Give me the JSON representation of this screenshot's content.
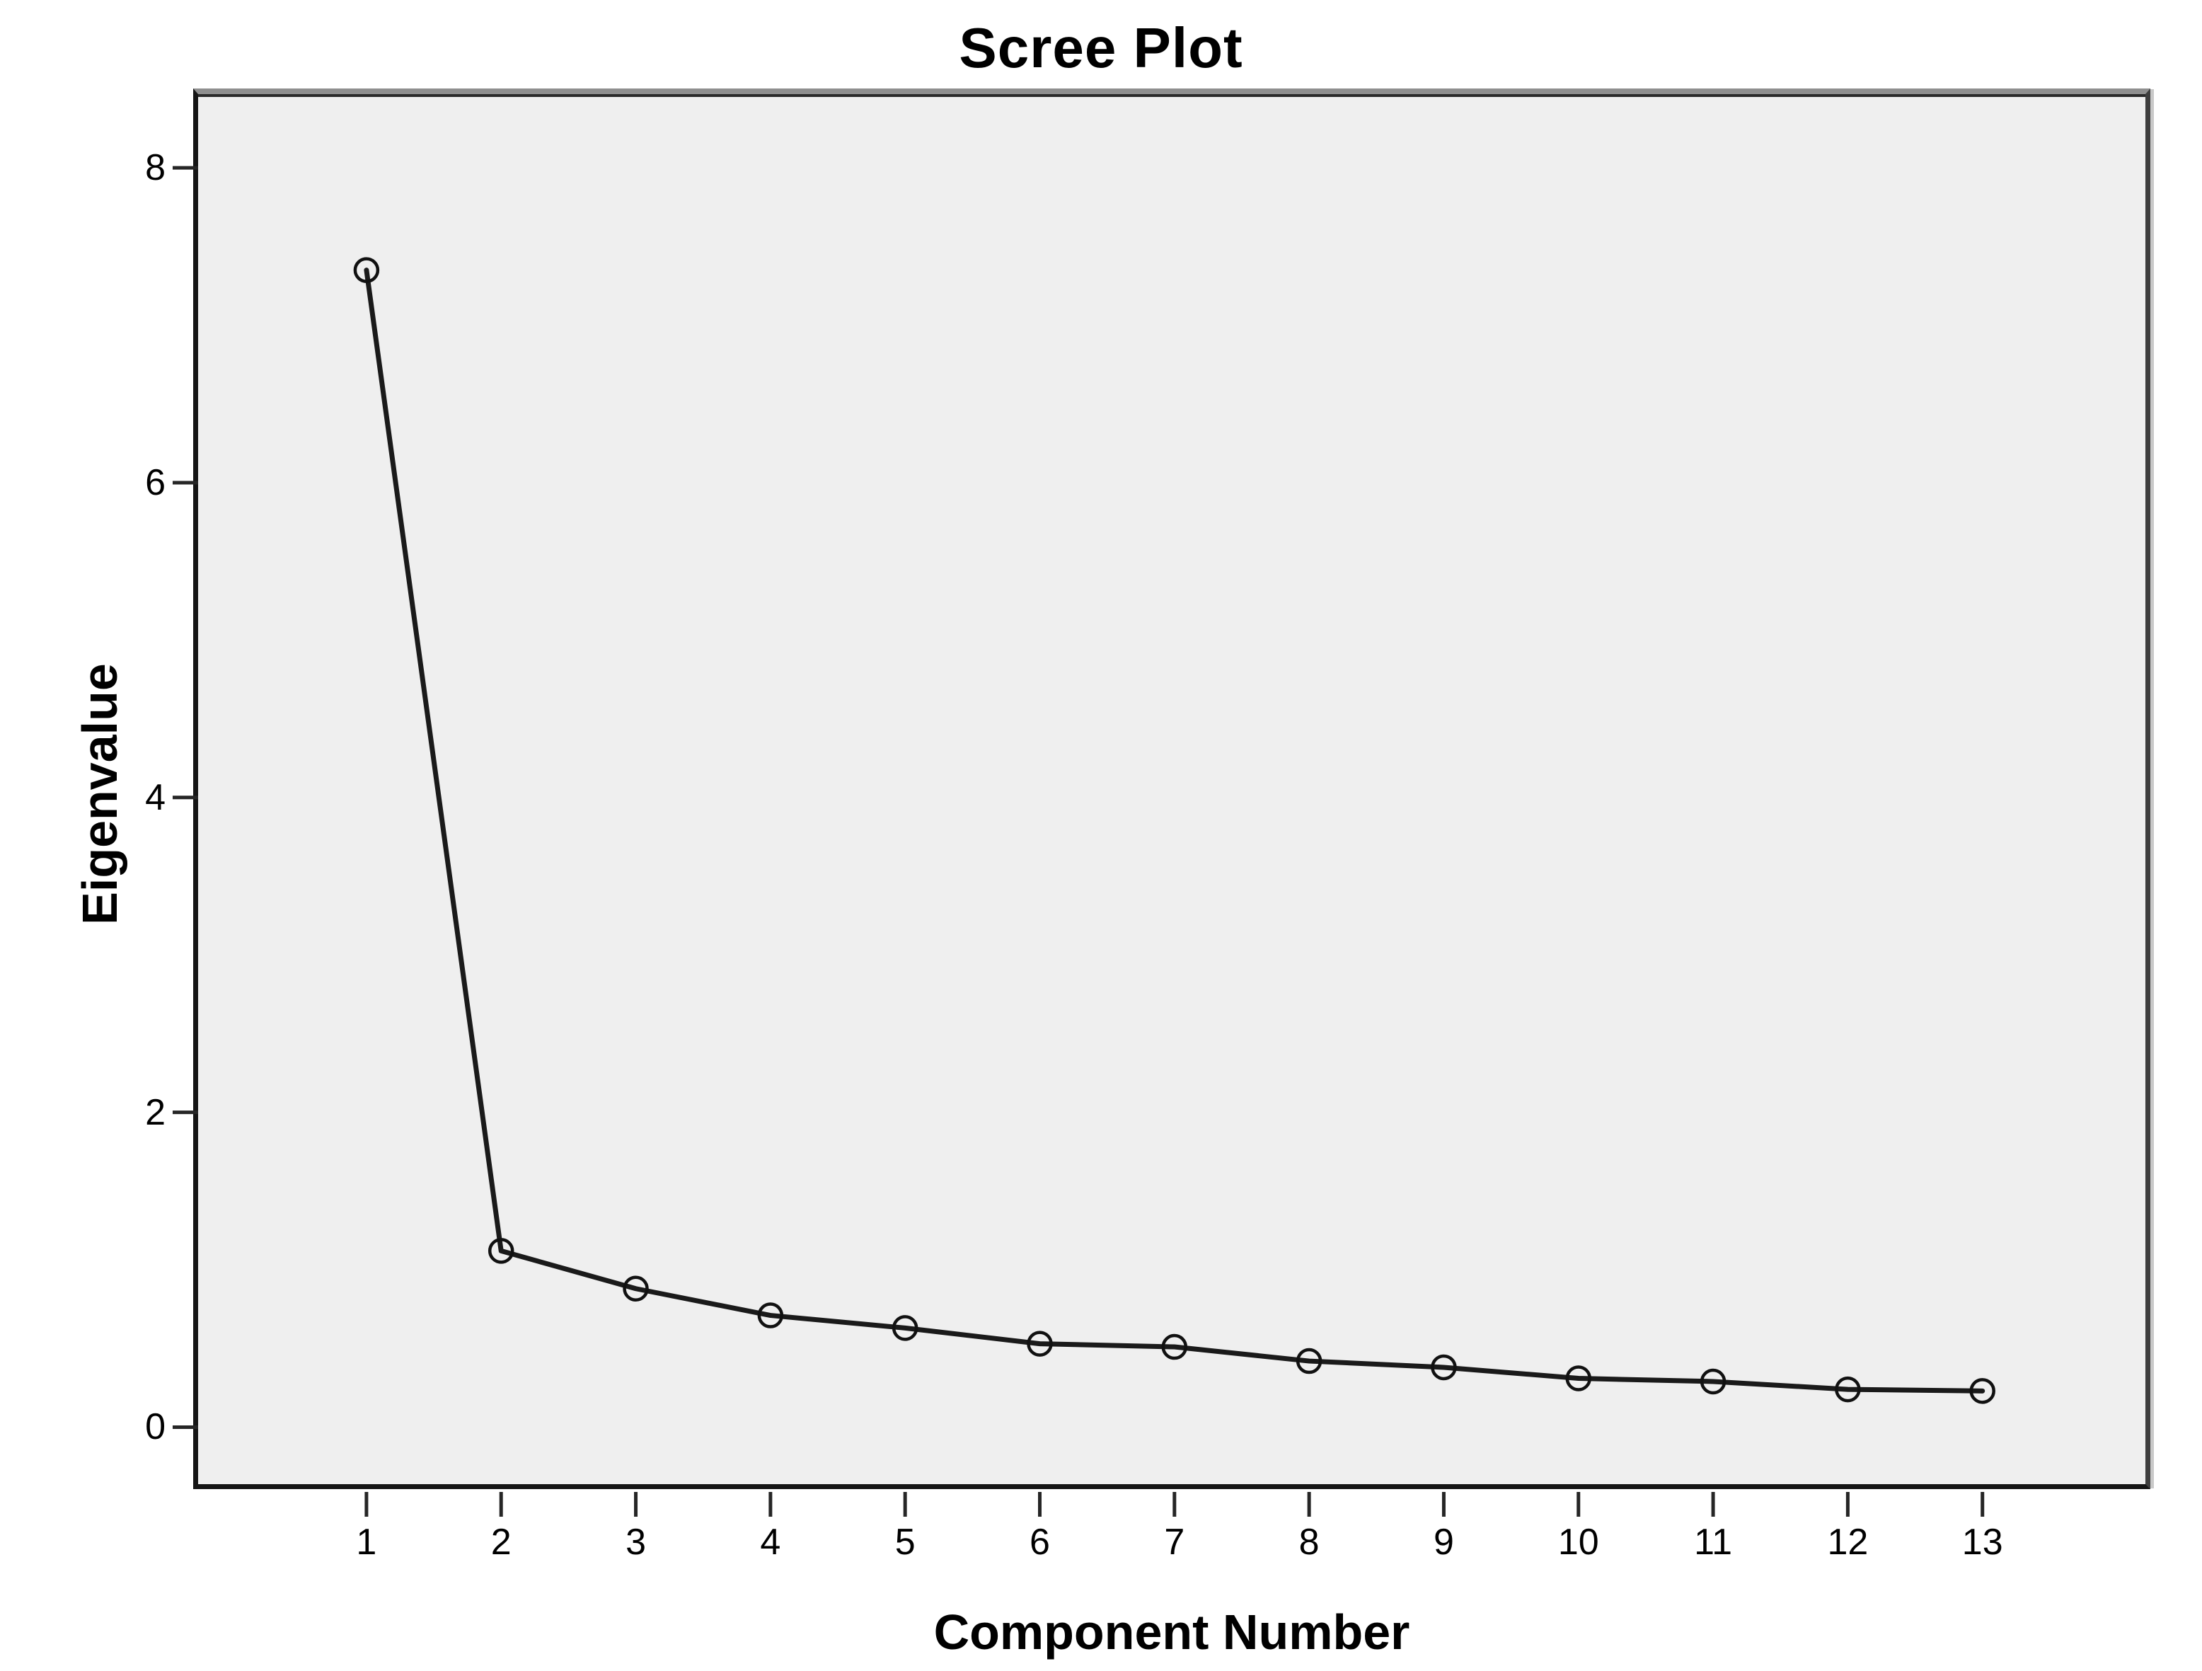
{
  "chart_data": {
    "type": "line",
    "title": "Scree Plot",
    "xlabel": "Component Number",
    "ylabel": "Eigenvalue",
    "series_name": "Eigenvalue",
    "categories": [
      1,
      2,
      3,
      4,
      5,
      6,
      7,
      8,
      9,
      10,
      11,
      12,
      13
    ],
    "values": [
      7.35,
      1.12,
      0.88,
      0.71,
      0.63,
      0.53,
      0.51,
      0.42,
      0.38,
      0.31,
      0.29,
      0.24,
      0.23
    ],
    "y_ticks": [
      0,
      2,
      4,
      6,
      8
    ],
    "xlim": [
      -0.25,
      14.21
    ],
    "ylim": [
      -0.38,
      8.45
    ],
    "grid": false,
    "legend": false,
    "marker": "open-circle",
    "line_color": "#1a1a1a",
    "marker_color": "#111111",
    "tick_color": "#262626",
    "plot_bg": "#efefef",
    "outer_bg": "#ffffff"
  }
}
